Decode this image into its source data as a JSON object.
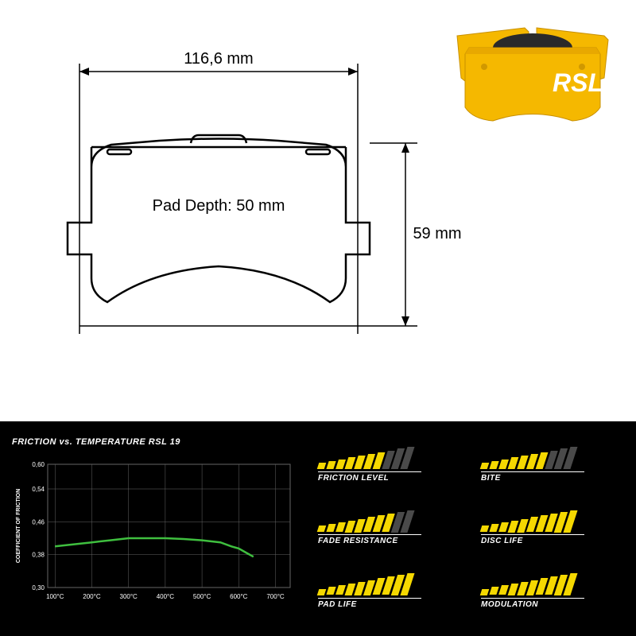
{
  "drawing": {
    "width_label": "116,6 mm",
    "height_label": "59 mm",
    "pad_depth_label": "Pad Depth: 50 mm",
    "stroke_color": "#000000",
    "stroke_width": 2
  },
  "product": {
    "brand_text": "RSL",
    "body_color": "#f5b800",
    "pad_color": "#2a2a2a",
    "text_color": "#ffffff"
  },
  "chart": {
    "title": "FRICTION vs. TEMPERATURE RSL 19",
    "y_label": "COEFFICIENT OF FRICTION",
    "y_ticks": [
      "0,30",
      "0,38",
      "0,46",
      "0,54",
      "0,60"
    ],
    "x_ticks": [
      "100°C",
      "200°C",
      "300°C",
      "400°C",
      "500°C",
      "600°C",
      "700°C"
    ],
    "line_color": "#3fbf3f",
    "grid_color": "#666666",
    "text_color": "#ffffff",
    "data_x": [
      100,
      150,
      200,
      250,
      300,
      350,
      400,
      450,
      500,
      550,
      580,
      600,
      620,
      640
    ],
    "data_y": [
      0.4,
      0.405,
      0.41,
      0.415,
      0.42,
      0.42,
      0.42,
      0.418,
      0.415,
      0.41,
      0.4,
      0.395,
      0.385,
      0.375
    ],
    "xlim": [
      80,
      740
    ],
    "ylim": [
      0.3,
      0.6
    ]
  },
  "ratings": {
    "bar_on_color": "#f5d800",
    "bar_off_color": "#4a4a4a",
    "max_bars": 10,
    "items": [
      {
        "label": "FRICTION LEVEL",
        "value": 7
      },
      {
        "label": "BITE",
        "value": 7
      },
      {
        "label": "FADE RESISTANCE",
        "value": 8
      },
      {
        "label": "DISC LIFE",
        "value": 10
      },
      {
        "label": "PAD LIFE",
        "value": 10
      },
      {
        "label": "MODULATION",
        "value": 10
      }
    ]
  }
}
